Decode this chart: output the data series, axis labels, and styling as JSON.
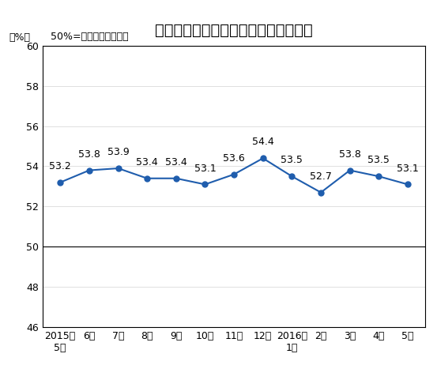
{
  "title": "非制造业商务活动指数（经季节调整）",
  "subtitle": "50%=与上月比较无变化",
  "ylabel": "（%）",
  "x_labels": [
    "2015年\n5月",
    "6月",
    "7月",
    "8月",
    "9月",
    "10月",
    "11月",
    "12月",
    "2016年\n1月",
    "2月",
    "3月",
    "4月",
    "5月"
  ],
  "values": [
    53.2,
    53.8,
    53.9,
    53.4,
    53.4,
    53.1,
    53.6,
    54.4,
    53.5,
    52.7,
    53.8,
    53.5,
    53.1
  ],
  "ylim": [
    46,
    60
  ],
  "yticks": [
    46,
    48,
    50,
    52,
    54,
    56,
    58,
    60
  ],
  "hline_y": 50,
  "line_color": "#1F5DAD",
  "marker_color": "#1F5DAD",
  "bg_color": "#FFFFFF",
  "outer_bg": "#FFFFFF",
  "title_fontsize": 14,
  "label_fontsize": 9,
  "annot_fontsize": 9,
  "subtitle_fontsize": 9
}
